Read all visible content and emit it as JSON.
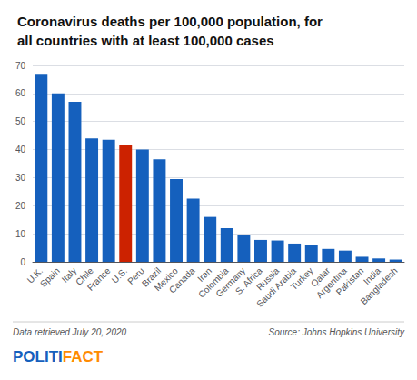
{
  "chart_data": {
    "type": "bar",
    "title": "Coronavirus deaths per 100,000 population, for\nall countries with at least 100,000 cases",
    "categories": [
      "U.K.",
      "Spain",
      "Italy",
      "Chile",
      "France",
      "U.S.",
      "Peru",
      "Brazil",
      "Mexico",
      "Canada",
      "Iran",
      "Colombia",
      "Germany",
      "S. Africa",
      "Russia",
      "Saudi Arabia",
      "Turkey",
      "Qatar",
      "Argentina",
      "Pakistan",
      "India",
      "Bangladesh"
    ],
    "values": [
      67,
      60,
      57,
      44,
      43.5,
      41.5,
      40,
      36.5,
      29.5,
      22.5,
      16,
      12,
      9.7,
      7.8,
      7.6,
      6.5,
      6.0,
      4.6,
      4.0,
      1.8,
      1.2,
      0.8
    ],
    "colors": [
      "#1560bd",
      "#1560bd",
      "#1560bd",
      "#1560bd",
      "#1560bd",
      "#cc2200",
      "#1560bd",
      "#1560bd",
      "#1560bd",
      "#1560bd",
      "#1560bd",
      "#1560bd",
      "#1560bd",
      "#1560bd",
      "#1560bd",
      "#1560bd",
      "#1560bd",
      "#1560bd",
      "#1560bd",
      "#1560bd",
      "#1560bd",
      "#1560bd"
    ],
    "ylim": [
      0,
      70
    ],
    "yticks": [
      0,
      10,
      20,
      30,
      40,
      50,
      60,
      70
    ],
    "grid": true,
    "annotations": [
      {
        "text": "Data retrieved July 20, 2020"
      },
      {
        "text": "Source: Johns Hopkins University"
      },
      {
        "text": "POLITI",
        "color": "#1560bd"
      },
      {
        "text": "FACT",
        "color": "#ff8c00"
      }
    ]
  }
}
